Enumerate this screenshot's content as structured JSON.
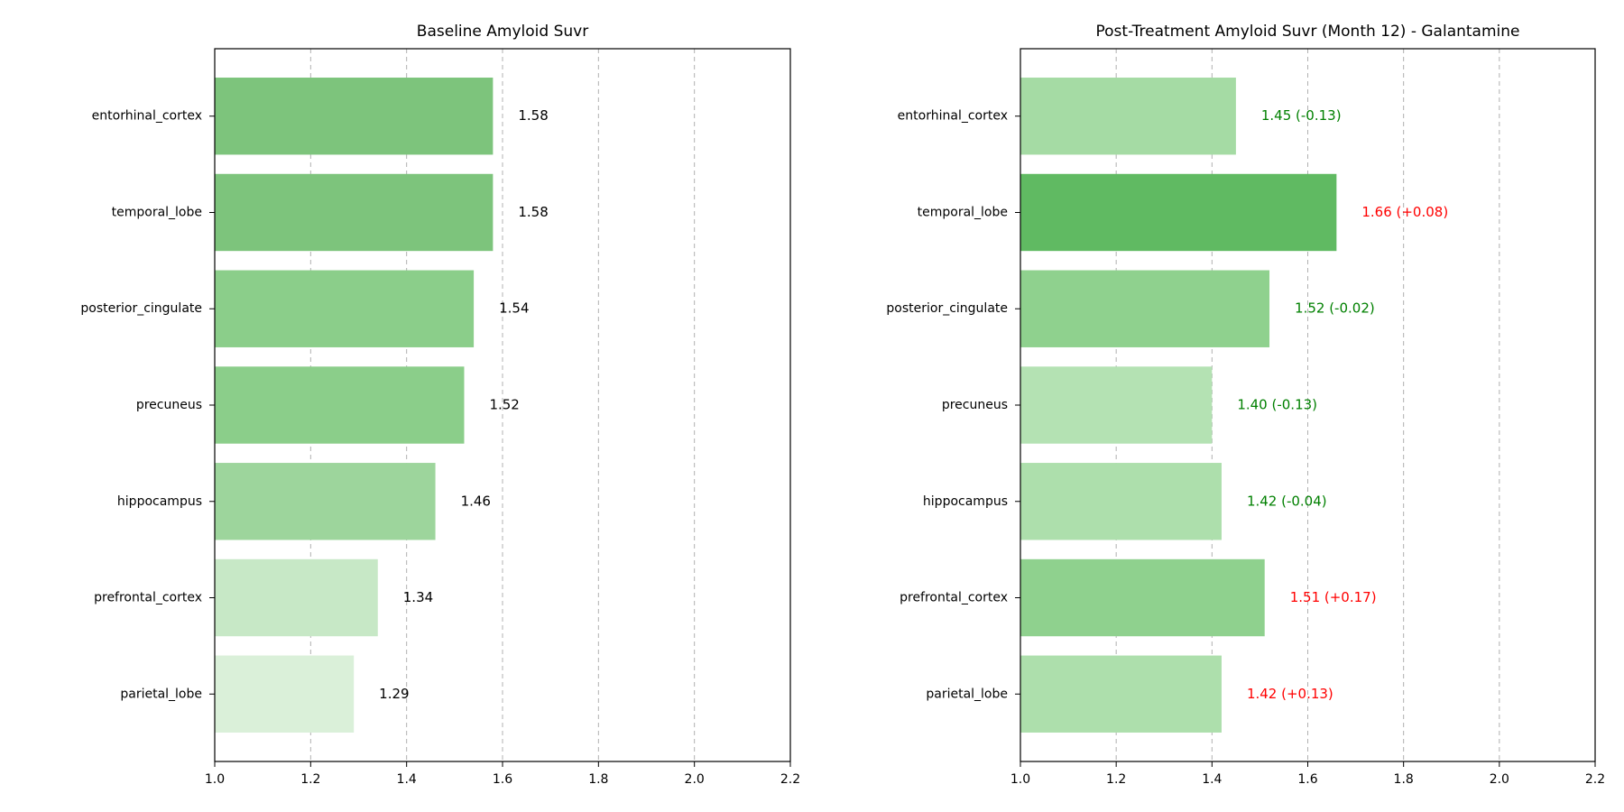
{
  "chart_data": [
    {
      "type": "bar",
      "orientation": "horizontal",
      "title": "Baseline Amyloid Suvr",
      "categories": [
        "entorhinal_cortex",
        "temporal_lobe",
        "posterior_cingulate",
        "precuneus",
        "hippocampus",
        "prefrontal_cortex",
        "parietal_lobe"
      ],
      "values": [
        1.58,
        1.58,
        1.54,
        1.52,
        1.46,
        1.34,
        1.29
      ],
      "value_labels": [
        "1.58",
        "1.58",
        "1.54",
        "1.52",
        "1.46",
        "1.34",
        "1.29"
      ],
      "value_label_colors": [
        "#000000",
        "#000000",
        "#000000",
        "#000000",
        "#000000",
        "#000000",
        "#000000"
      ],
      "bar_colors": [
        "#7dc47c",
        "#7dc47c",
        "#8bce8a",
        "#8bce8a",
        "#9dd59c",
        "#c7e8c6",
        "#daf0d9"
      ],
      "xlim": [
        1.0,
        2.2
      ],
      "xticks": [
        "1.0",
        "1.2",
        "1.4",
        "1.6",
        "1.8",
        "2.0",
        "2.2"
      ],
      "grid": "x-dashed"
    },
    {
      "type": "bar",
      "orientation": "horizontal",
      "title": "Post-Treatment Amyloid Suvr (Month 12) - Galantamine",
      "categories": [
        "entorhinal_cortex",
        "temporal_lobe",
        "posterior_cingulate",
        "precuneus",
        "hippocampus",
        "prefrontal_cortex",
        "parietal_lobe"
      ],
      "values": [
        1.45,
        1.66,
        1.52,
        1.4,
        1.42,
        1.51,
        1.42
      ],
      "value_labels": [
        "1.45 (-0.13)",
        "1.66 (+0.08)",
        "1.52 (-0.02)",
        "1.40 (-0.13)",
        "1.42 (-0.04)",
        "1.51 (+0.17)",
        "1.42 (+0.13)"
      ],
      "value_label_colors": [
        "#008000",
        "#ff0000",
        "#008000",
        "#008000",
        "#008000",
        "#ff0000",
        "#ff0000"
      ],
      "bar_colors": [
        "#a5dba4",
        "#60ba62",
        "#8fd18e",
        "#b4e2b3",
        "#addfac",
        "#8fd18e",
        "#addfac"
      ],
      "xlim": [
        1.0,
        2.2
      ],
      "xticks": [
        "1.0",
        "1.2",
        "1.4",
        "1.6",
        "1.8",
        "2.0",
        "2.2"
      ],
      "grid": "x-dashed"
    }
  ]
}
